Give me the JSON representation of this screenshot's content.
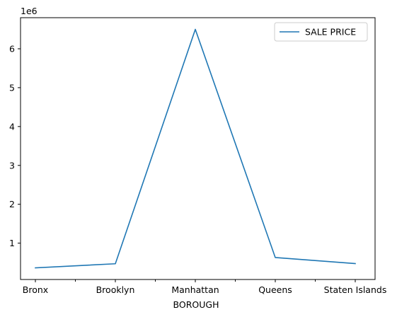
{
  "chart_data": {
    "type": "line",
    "xlabel": "BOROUGH",
    "ylabel": "",
    "title": "",
    "categories": [
      "Bronx",
      "Brooklyn",
      "Manhattan",
      "Queens",
      "Staten Islands"
    ],
    "series": [
      {
        "name": "SALE PRICE",
        "values": [
          365000,
          470000,
          6500000,
          630000,
          475000
        ],
        "color": "#1f77b4"
      }
    ],
    "yticks": [
      1,
      2,
      3,
      4,
      5,
      6
    ],
    "ytick_labels": [
      "1",
      "2",
      "3",
      "4",
      "5",
      "6"
    ],
    "y_offset_label": "1e6",
    "y_multiplier": 1000000,
    "ylim": [
      65000,
      6800000
    ],
    "legend_position": "upper-right",
    "grid": false
  }
}
